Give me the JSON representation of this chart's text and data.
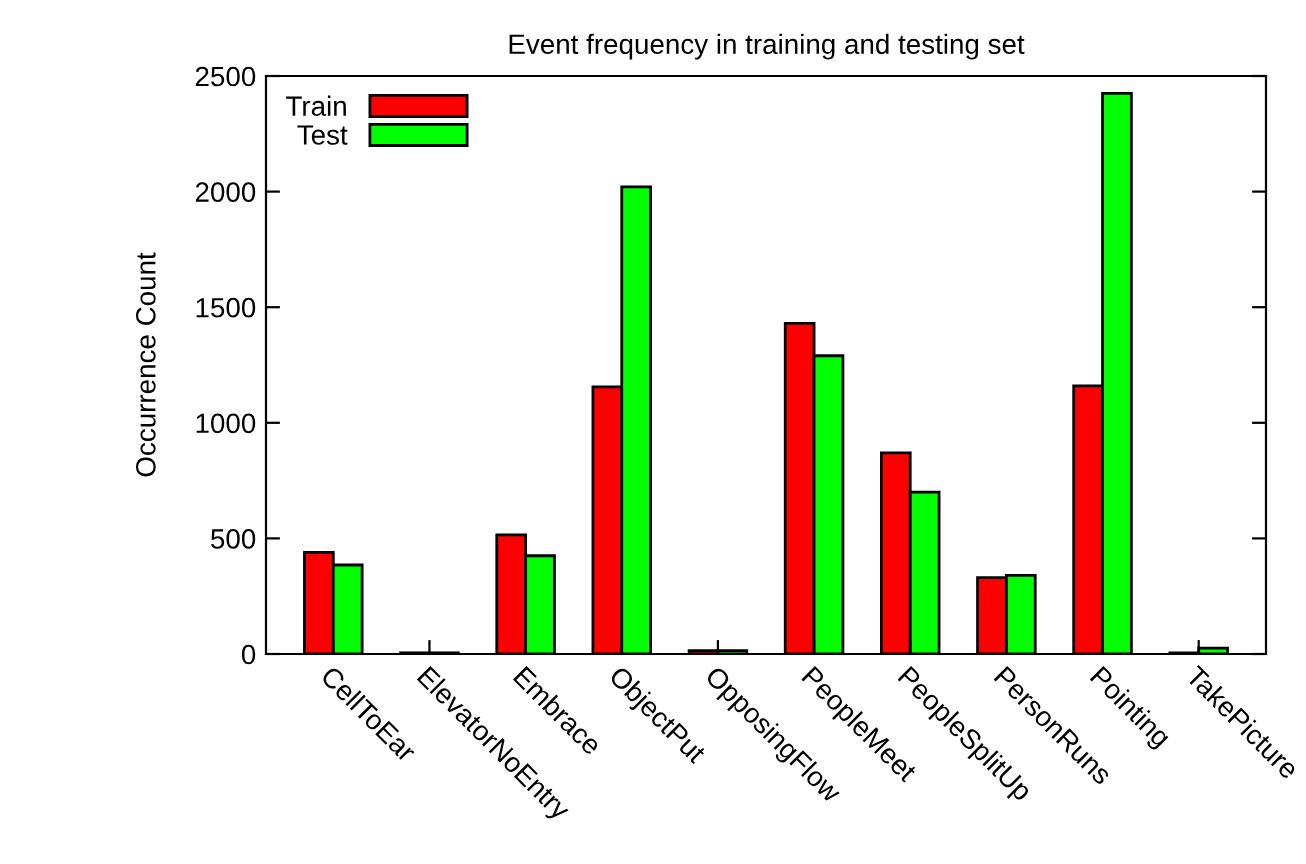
{
  "chart_data": {
    "type": "bar",
    "title": "Event frequency in training and testing set",
    "ylabel": "Occurrence Count",
    "categories": [
      "CellToEar",
      "ElevatorNoEntry",
      "Embrace",
      "ObjectPut",
      "OpposingFlow",
      "PeopleMeet",
      "PeopleSplitUp",
      "PersonRuns",
      "Pointing",
      "TakePicture"
    ],
    "series": [
      {
        "name": "Train",
        "color": "#ff0000",
        "values": [
          440,
          5,
          515,
          1155,
          15,
          1430,
          870,
          330,
          1160,
          5
        ]
      },
      {
        "name": "Test",
        "color": "#00ff00",
        "values": [
          385,
          5,
          425,
          2020,
          15,
          1290,
          700,
          340,
          2425,
          25
        ]
      }
    ],
    "ylim": [
      0,
      2500
    ],
    "yticks": [
      0,
      500,
      1000,
      1500,
      2000,
      2500
    ],
    "grid": false,
    "legend": "top left"
  }
}
